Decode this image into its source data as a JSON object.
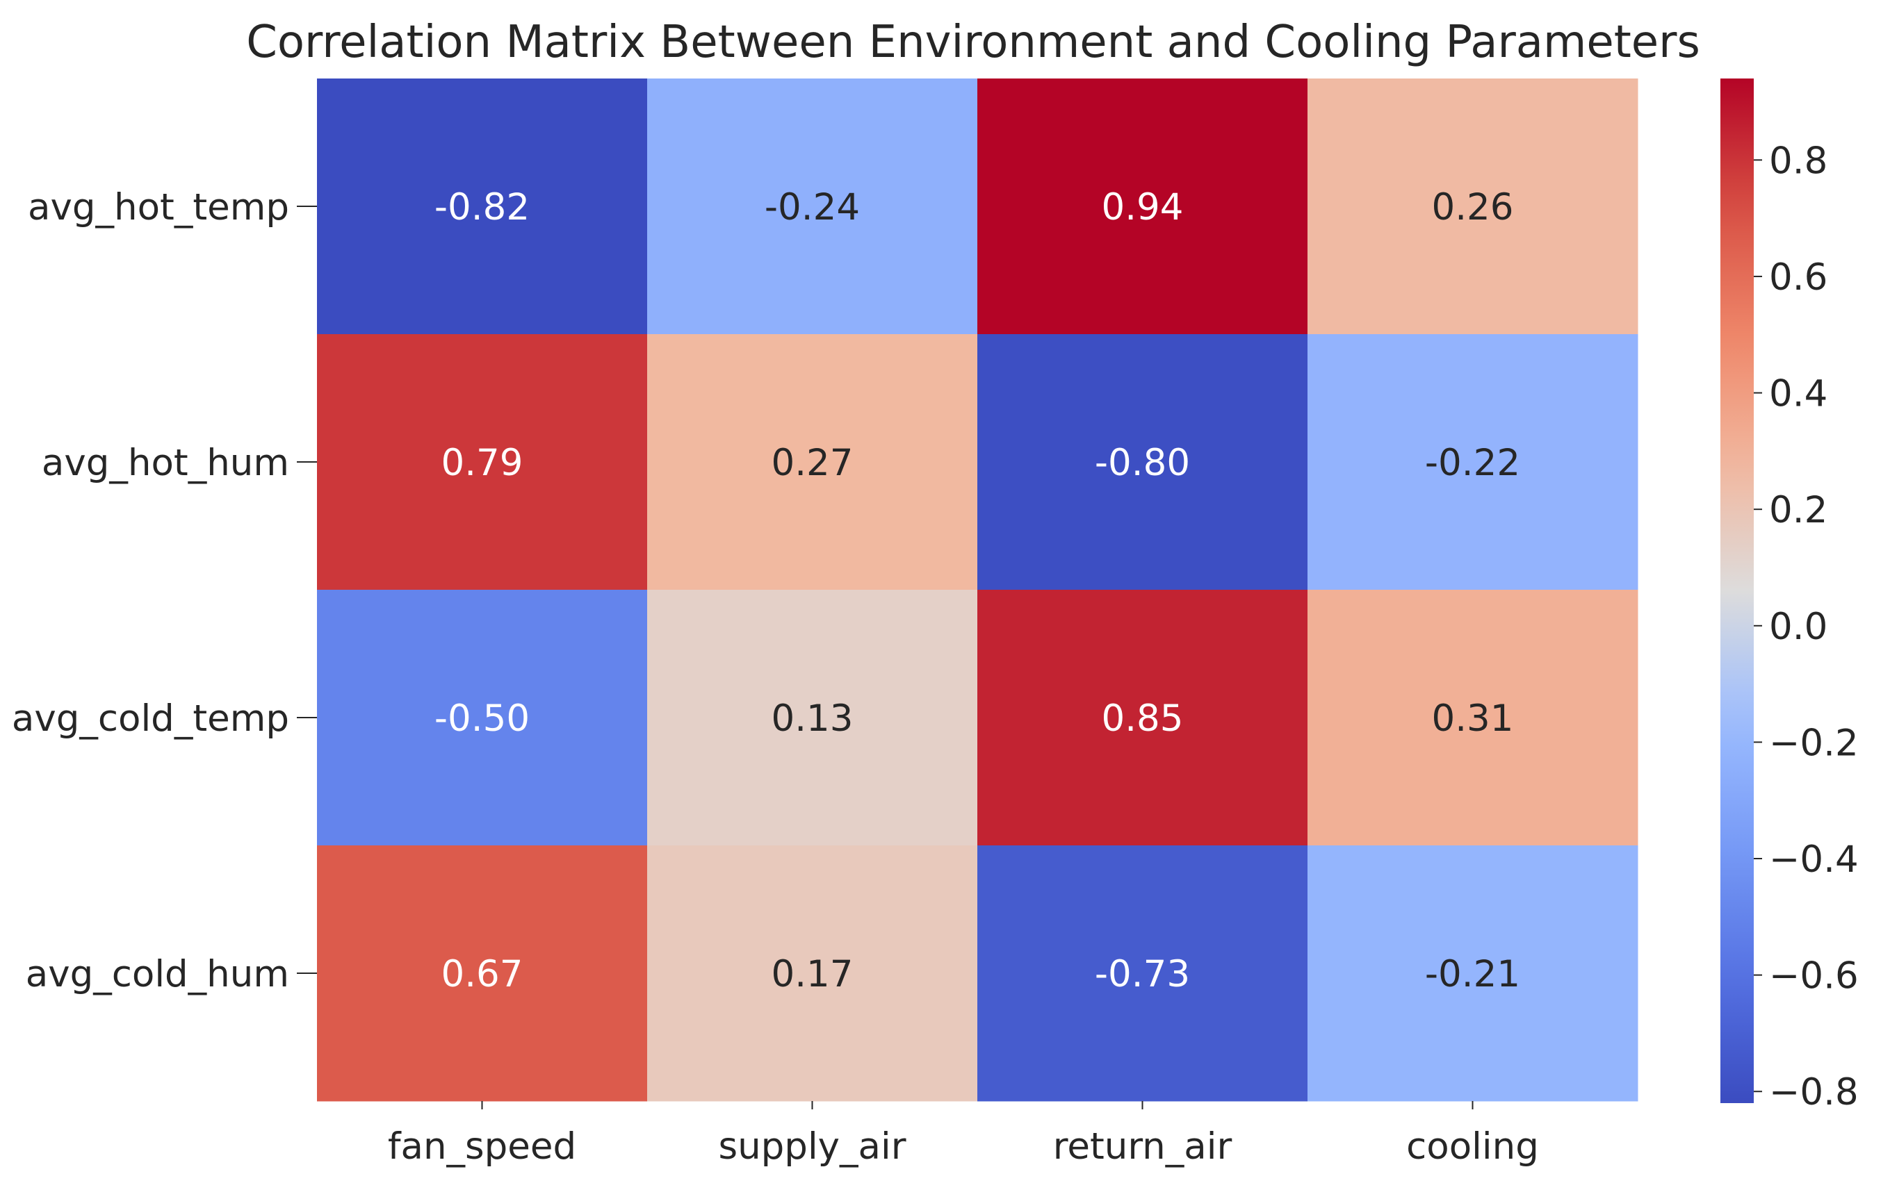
{
  "chart_data": {
    "type": "heatmap",
    "title": "Correlation Matrix Between Environment and Cooling Parameters",
    "xlabel": "",
    "ylabel": "",
    "row_labels": [
      "avg_hot_temp",
      "avg_hot_hum",
      "avg_cold_temp",
      "avg_cold_hum"
    ],
    "column_labels": [
      "fan_speed",
      "supply_air",
      "return_air",
      "cooling"
    ],
    "values": [
      [
        -0.82,
        -0.24,
        0.94,
        0.26
      ],
      [
        0.79,
        0.27,
        -0.8,
        -0.22
      ],
      [
        -0.5,
        0.13,
        0.85,
        0.31
      ],
      [
        0.67,
        0.17,
        -0.73,
        -0.21
      ]
    ],
    "cell_labels": [
      [
        "-0.82",
        "-0.24",
        "0.94",
        "0.26"
      ],
      [
        "0.79",
        "0.27",
        "-0.80",
        "-0.22"
      ],
      [
        "-0.50",
        "0.13",
        "0.85",
        "0.31"
      ],
      [
        "0.67",
        "0.17",
        "-0.73",
        "-0.21"
      ]
    ],
    "colormap": "coolwarm",
    "colorbar": {
      "range": [
        -0.82,
        0.94
      ],
      "ticks": [
        0.8,
        0.6,
        0.4,
        0.2,
        0.0,
        -0.2,
        -0.4,
        -0.6,
        -0.8
      ],
      "tick_labels": [
        "0.8",
        "0.6",
        "0.4",
        "0.2",
        "0.0",
        "−0.2",
        "−0.4",
        "−0.6",
        "−0.8"
      ]
    }
  }
}
